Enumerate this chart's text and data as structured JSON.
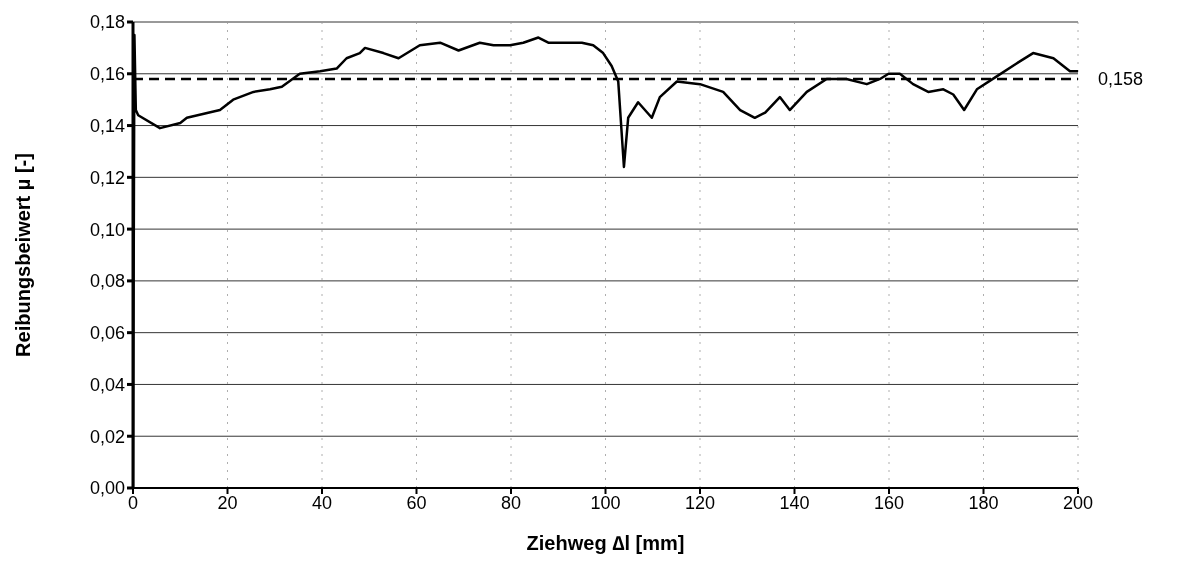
{
  "chart_data": {
    "type": "line",
    "xlabel": "Ziehweg ∆l [mm]",
    "ylabel": "Reibungsbeiwert µ [-]",
    "xlim": [
      0,
      200
    ],
    "xticks": [
      0,
      20,
      40,
      60,
      80,
      100,
      120,
      140,
      160,
      180,
      200
    ],
    "ylim": [
      0,
      0.18
    ],
    "yticks": [
      {
        "value": 0,
        "label": "0,00"
      },
      {
        "value": 0.02,
        "label": "0,02"
      },
      {
        "value": 0.04,
        "label": "0,04"
      },
      {
        "value": 0.06,
        "label": "0,06"
      },
      {
        "value": 0.08,
        "label": "0,08"
      },
      {
        "value": 0.1,
        "label": "0,10"
      },
      {
        "value": 0.12,
        "label": "0,12"
      },
      {
        "value": 0.14,
        "label": "0,14"
      },
      {
        "value": 0.16,
        "label": "0,16"
      },
      {
        "value": 0.18,
        "label": "0,18"
      }
    ],
    "grid": true,
    "marker": "none",
    "line_style": "solid",
    "x": [
      0,
      0.3,
      0.6,
      1.1,
      5.7,
      10,
      11.4,
      18.4,
      21.2,
      25.5,
      29,
      31.5,
      35.3,
      39.6,
      43.1,
      45.2,
      48,
      49.1,
      53,
      56.2,
      60.7,
      65,
      68.9,
      73.4,
      76.3,
      79.8,
      82.6,
      85.8,
      87.9,
      92.5,
      95,
      97.4,
      99.5,
      101.3,
      102.7,
      103.9,
      104.8,
      106.9,
      109.8,
      111.5,
      115.1,
      120,
      124.9,
      128.5,
      131.6,
      133.8,
      136.9,
      139,
      142.6,
      146.8,
      151,
      155.3,
      158.1,
      159.9,
      162.3,
      165.1,
      168.3,
      171.5,
      173.6,
      175.9,
      178.6,
      182.8,
      187,
      190.5,
      194.8,
      198.3,
      200
    ],
    "series": [
      {
        "color": "#000000",
        "values": [
          0,
          0.175,
          0.146,
          0.144,
          0.139,
          0.141,
          0.143,
          0.146,
          0.15,
          0.153,
          0.154,
          0.155,
          0.16,
          0.161,
          0.162,
          0.166,
          0.168,
          0.17,
          0.168,
          0.166,
          0.171,
          0.172,
          0.169,
          0.172,
          0.171,
          0.171,
          0.172,
          0.174,
          0.172,
          0.172,
          0.172,
          0.171,
          0.168,
          0.163,
          0.157,
          0.124,
          0.143,
          0.149,
          0.143,
          0.151,
          0.157,
          0.156,
          0.153,
          0.146,
          0.143,
          0.145,
          0.151,
          0.146,
          0.153,
          0.158,
          0.158,
          0.156,
          0.158,
          0.16,
          0.16,
          0.156,
          0.153,
          0.154,
          0.152,
          0.146,
          0.154,
          0.159,
          0.164,
          0.168,
          0.166,
          0.161,
          0.161
        ]
      }
    ],
    "ref_lines": [
      {
        "axis": "y",
        "value": 0.158,
        "label": "0,158",
        "color": "#000000",
        "line_style": "dashed"
      }
    ]
  }
}
